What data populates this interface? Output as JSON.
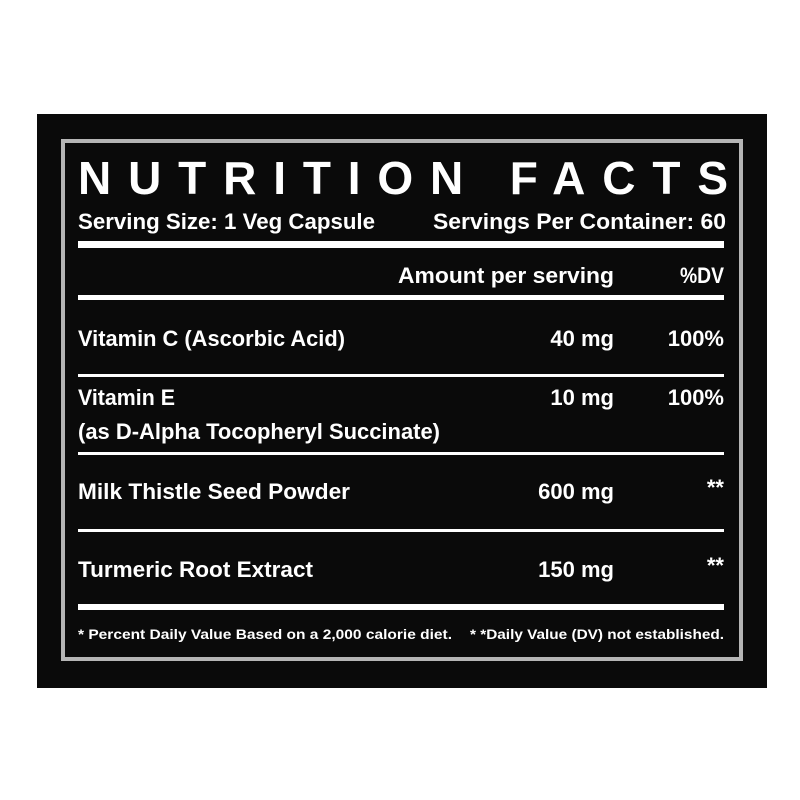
{
  "header": {
    "title": "NUTRITION FACTS",
    "serving_size": "Serving Size: 1 Veg Capsule",
    "servings_per_container": "Servings Per Container: 60"
  },
  "columns": {
    "amount": "Amount per serving",
    "dv": "%DV"
  },
  "rows": [
    {
      "name": "Vitamin C (Ascorbic Acid)",
      "amount": "40 mg",
      "dv": "100%"
    },
    {
      "name": "Vitamin E",
      "detail": "(as D-Alpha Tocopheryl Succinate)",
      "amount": "10 mg",
      "dv": "100%"
    },
    {
      "name": "Milk Thistle Seed Powder",
      "amount": "600 mg",
      "dv": "**"
    },
    {
      "name": "Turmeric Root Extract",
      "amount": "150 mg",
      "dv": "**"
    }
  ],
  "footnotes": [
    "* Percent Daily Value Based on a 2,000 calorie diet.",
    "* *Daily Value (DV) not established."
  ]
}
